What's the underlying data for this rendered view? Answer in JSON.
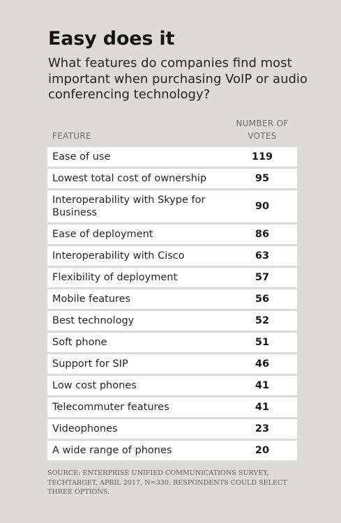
{
  "title": "Easy does it",
  "subtitle": "What features do companies find most important when purchasing VoIP or audio conferencing technology?",
  "source": "SOURCE: ENTERPRISE UNIFIED COMMUNICATIONS SURVEY, TECHTARGET, APRIL 2017, N=330. RESPONDENTS COULD SELECT THREE OPTIONS.",
  "chart_data": {
    "type": "table",
    "title": "Easy does it",
    "subtitle": "What features do companies find most important when purchasing VoIP or audio conferencing technology?",
    "columns": [
      "FEATURE",
      "NUMBER OF VOTES"
    ],
    "rows": [
      {
        "feature": "Ease of use",
        "votes": 119
      },
      {
        "feature": "Lowest total cost of ownership",
        "votes": 95
      },
      {
        "feature": "Interoperability with Skype for Business",
        "votes": 90
      },
      {
        "feature": "Ease of deployment",
        "votes": 86
      },
      {
        "feature": "Interoperability with Cisco",
        "votes": 63
      },
      {
        "feature": "Flexibility of deployment",
        "votes": 57
      },
      {
        "feature": "Mobile features",
        "votes": 56
      },
      {
        "feature": "Best technology",
        "votes": 52
      },
      {
        "feature": "Soft phone",
        "votes": 51
      },
      {
        "feature": "Support for SIP",
        "votes": 46
      },
      {
        "feature": "Low cost phones",
        "votes": 41
      },
      {
        "feature": "Telecommuter features",
        "votes": 41
      },
      {
        "feature": "Videophones",
        "votes": 23
      },
      {
        "feature": "A wide range of phones",
        "votes": 20
      }
    ]
  }
}
